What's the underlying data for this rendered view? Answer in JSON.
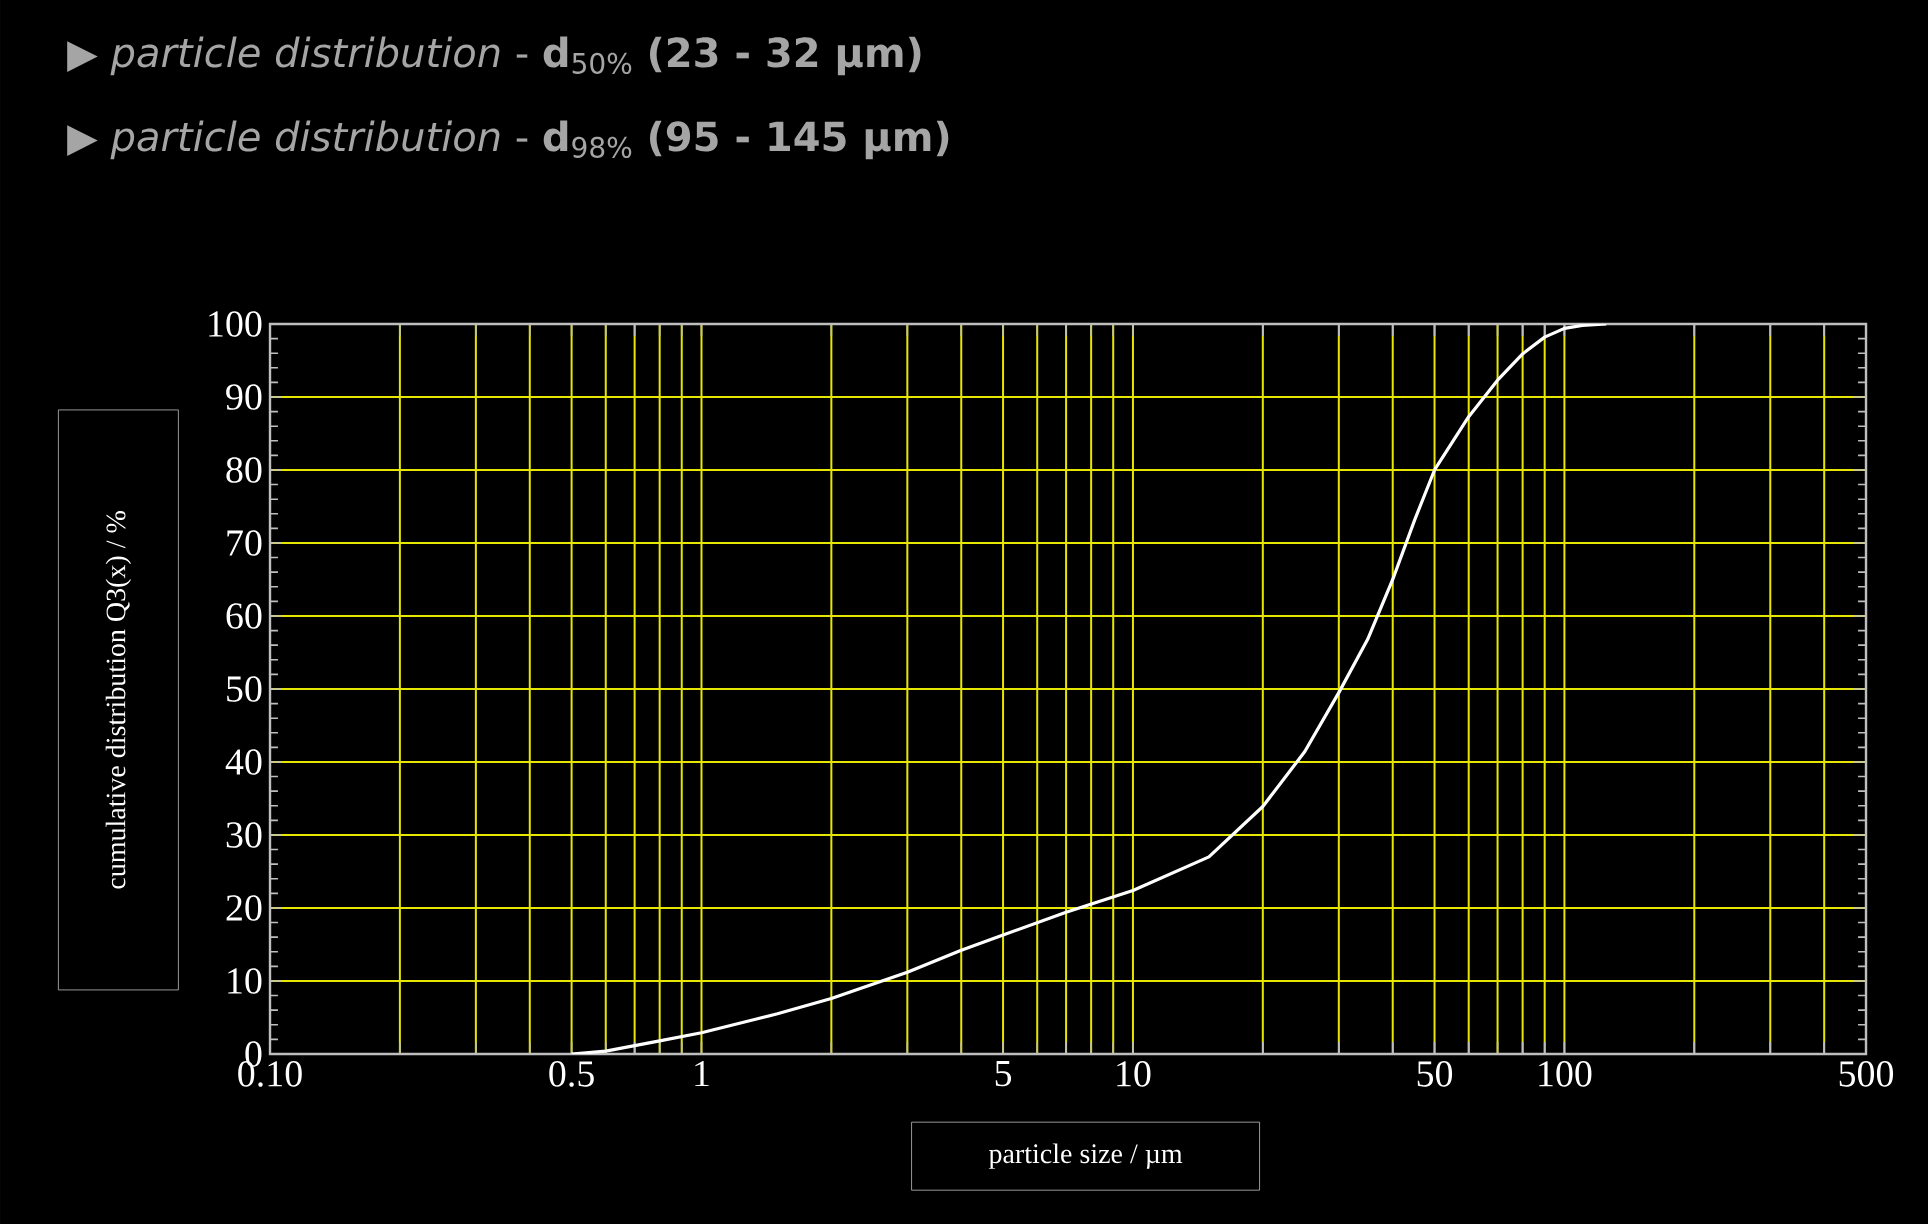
{
  "chart_data": {
    "type": "line",
    "title": "▶ *particle distribution* - **d**$_{50%}$ **(23 - 32 µm)**",
    "subtitle": "▶ *particle distribution* - **d**$_{98%}$ **(95 - 145 µm)**",
    "xlabel": "particle size / µm",
    "ylabel": "cumulative distribution Q3(x) / %",
    "x": [
      0.5,
      0.6,
      0.8,
      1,
      1.5,
      2,
      3,
      4,
      5,
      7,
      10,
      15,
      20,
      25,
      30,
      35,
      40,
      45,
      50,
      60,
      70,
      80,
      90,
      100,
      110,
      125
    ],
    "values": [
      0,
      0.4,
      1.8,
      2.9,
      5.5,
      7.6,
      11.2,
      14.2,
      16.3,
      19.4,
      22.4,
      27,
      33.9,
      41.4,
      49.5,
      56.8,
      65,
      73.2,
      80,
      87.3,
      92.3,
      95.9,
      98.2,
      99.4,
      99.8,
      100
    ],
    "color": "#ffffff",
    "xlim": [
      0.1,
      500
    ],
    "ylim": [
      0,
      100
    ],
    "log": "x",
    "grid": true,
    "xticks": [
      {
        "value": 0.1,
        "label": "0.10"
      },
      {
        "value": 0.2,
        "label": null
      },
      {
        "value": 0.3,
        "label": null
      },
      {
        "value": 0.4,
        "label": null
      },
      0.5,
      {
        "value": 0.6,
        "label": null
      },
      {
        "value": 0.7,
        "label": null
      },
      {
        "value": 0.8,
        "label": null
      },
      {
        "value": 0.9,
        "label": null
      },
      1,
      {
        "value": 2,
        "label": null
      },
      {
        "value": 3,
        "label": null
      },
      {
        "value": 4,
        "label": null
      },
      5,
      {
        "value": 6,
        "label": null
      },
      {
        "value": 7,
        "label": null
      },
      {
        "value": 8,
        "label": null
      },
      {
        "value": 9,
        "label": null
      },
      10,
      {
        "value": 20,
        "label": null
      },
      {
        "value": 30,
        "label": null
      },
      {
        "value": 40,
        "label": null
      },
      50,
      {
        "value": 60,
        "label": null
      },
      {
        "value": 70,
        "label": null
      },
      {
        "value": 80,
        "label": null
      },
      {
        "value": 90,
        "label": null
      },
      100,
      {
        "value": 200,
        "label": null
      },
      {
        "value": 300,
        "label": null
      },
      {
        "value": 400,
        "label": null
      },
      500
    ],
    "yticks": [
      0,
      10,
      20,
      30,
      40,
      50,
      60,
      70,
      80,
      90,
      100
    ]
  }
}
